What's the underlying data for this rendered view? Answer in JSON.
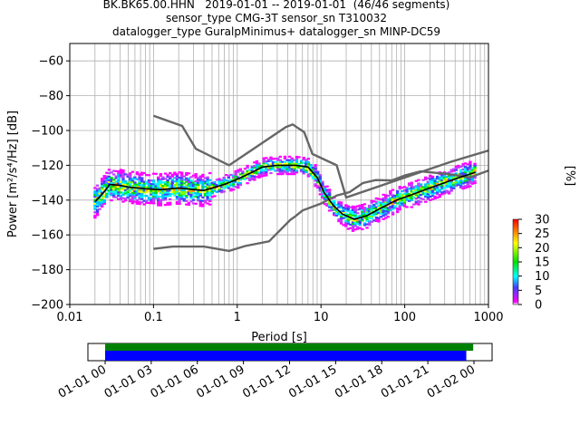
{
  "title_lines": [
    "BK.BK65.00.HHN   2019-01-01 -- 2019-01-01  (46/46 segments)",
    "sensor_type CMG-3T sensor_sn T310032",
    "datalogger_type GuralpMinimus+ datalogger_sn MINP-DC59"
  ],
  "chart_data": {
    "type": "heatmap",
    "xlabel": "Period [s]",
    "ylabel": "Power [m²/s⁴/Hz] [dB]",
    "xscale": "log",
    "xlim": [
      0.01,
      1000
    ],
    "ylim": [
      -200,
      -50
    ],
    "xticks": [
      0.01,
      0.1,
      1,
      10,
      100,
      1000
    ],
    "xtick_labels": [
      "0.01",
      "0.1",
      "1",
      "10",
      "100",
      "1000"
    ],
    "yticks": [
      -200,
      -180,
      -160,
      -140,
      -120,
      -100,
      -80,
      -60
    ],
    "grid": true,
    "noise_model_high": [
      [
        0.1,
        -91.5
      ],
      [
        0.22,
        -97.4
      ],
      [
        0.32,
        -110.5
      ],
      [
        0.8,
        -120
      ],
      [
        3.8,
        -98
      ],
      [
        4.6,
        -96.5
      ],
      [
        6.3,
        -101
      ],
      [
        7.9,
        -113.5
      ],
      [
        15.4,
        -120
      ],
      [
        20,
        -138.5
      ],
      [
        354,
        -118
      ],
      [
        1000,
        -111.5
      ]
    ],
    "noise_model_low": [
      [
        0.1,
        -168
      ],
      [
        0.17,
        -166.7
      ],
      [
        0.4,
        -166.7
      ],
      [
        0.8,
        -169.2
      ],
      [
        1.24,
        -166.4
      ],
      [
        2.4,
        -163.7
      ],
      [
        4.3,
        -151.4
      ],
      [
        5,
        -149.1
      ],
      [
        6,
        -146
      ],
      [
        10,
        -142
      ],
      [
        12,
        -140
      ],
      [
        15.6,
        -137.3
      ],
      [
        21.9,
        -135.4
      ],
      [
        31.6,
        -130.2
      ],
      [
        45,
        -128.5
      ],
      [
        70,
        -128.7
      ],
      [
        101,
        -125.8
      ],
      [
        154,
        -123.5
      ],
      [
        328,
        -125
      ],
      [
        600,
        -127
      ],
      [
        1000,
        -123
      ]
    ],
    "mode_curve": [
      [
        0.02,
        -141
      ],
      [
        0.025,
        -136
      ],
      [
        0.03,
        -131
      ],
      [
        0.04,
        -131.5
      ],
      [
        0.05,
        -132.5
      ],
      [
        0.08,
        -133.5
      ],
      [
        0.12,
        -134
      ],
      [
        0.2,
        -133
      ],
      [
        0.4,
        -134.5
      ],
      [
        0.7,
        -131
      ],
      [
        1,
        -128
      ],
      [
        1.5,
        -124
      ],
      [
        2,
        -121
      ],
      [
        3,
        -120
      ],
      [
        5,
        -120
      ],
      [
        7,
        -121
      ],
      [
        9,
        -127
      ],
      [
        11,
        -136
      ],
      [
        14,
        -143
      ],
      [
        18,
        -148
      ],
      [
        25,
        -151
      ],
      [
        35,
        -149
      ],
      [
        50,
        -145
      ],
      [
        80,
        -140
      ],
      [
        120,
        -137
      ],
      [
        200,
        -133
      ],
      [
        300,
        -130
      ],
      [
        450,
        -127
      ],
      [
        700,
        -124
      ]
    ],
    "colorbar": {
      "label": "[%]",
      "min": 0,
      "max": 30,
      "ticks": [
        0,
        5,
        10,
        15,
        20,
        25,
        30
      ]
    },
    "timeline": {
      "tick_labels": [
        "01-01 00",
        "01-01 03",
        "01-01 06",
        "01-01 09",
        "01-01 12",
        "01-01 15",
        "01-01 18",
        "01-01 21",
        "01-02 00"
      ],
      "data_coverage": [
        [
          0,
          23.95
        ]
      ],
      "psd_coverage": [
        [
          0,
          23.5
        ]
      ],
      "data_color": "#008000",
      "psd_color": "#0000ff"
    }
  }
}
